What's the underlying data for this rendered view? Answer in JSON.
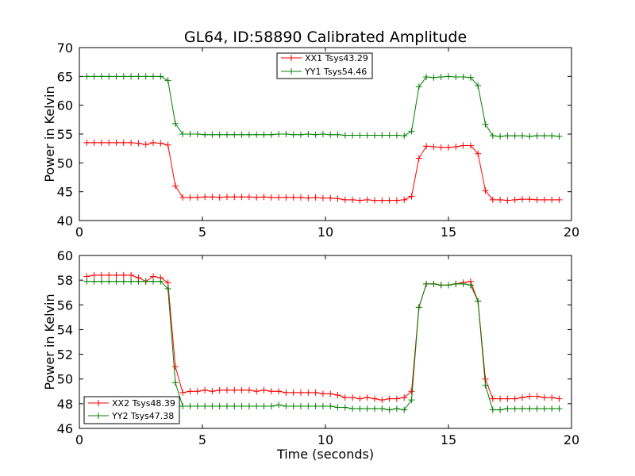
{
  "chart_data": [
    {
      "type": "line",
      "title": "GL64, ID:58890 Calibrated Amplitude",
      "xlabel": "",
      "ylabel": "Power in Kelvin",
      "xlim": [
        0,
        20
      ],
      "ylim": [
        40,
        70
      ],
      "xticks": [
        "0",
        "5",
        "10",
        "15",
        "20"
      ],
      "yticks": [
        "40",
        "45",
        "50",
        "55",
        "60",
        "65",
        "70"
      ],
      "legend_position": "top-center",
      "x": [
        0.3,
        0.6,
        0.9,
        1.2,
        1.5,
        1.8,
        2.1,
        2.4,
        2.7,
        3.0,
        3.3,
        3.6,
        3.9,
        4.2,
        4.5,
        4.8,
        5.1,
        5.4,
        5.7,
        6.0,
        6.3,
        6.6,
        6.9,
        7.2,
        7.5,
        7.8,
        8.1,
        8.4,
        8.7,
        9.0,
        9.3,
        9.6,
        9.9,
        10.2,
        10.5,
        10.8,
        11.1,
        11.4,
        11.7,
        12.0,
        12.3,
        12.6,
        12.9,
        13.2,
        13.5,
        13.8,
        14.1,
        14.4,
        14.7,
        15.0,
        15.3,
        15.6,
        15.9,
        16.2,
        16.5,
        16.8,
        17.1,
        17.4,
        17.7,
        18.0,
        18.3,
        18.6,
        18.9,
        19.2,
        19.5
      ],
      "series": [
        {
          "name": "XX1 Tsys43.29",
          "color": "#ff0000",
          "values": [
            53.5,
            53.5,
            53.5,
            53.5,
            53.5,
            53.5,
            53.5,
            53.4,
            53.2,
            53.5,
            53.4,
            53.1,
            46.0,
            44.0,
            44.0,
            44.0,
            44.1,
            44.1,
            44.0,
            44.1,
            44.1,
            44.1,
            44.1,
            44.0,
            44.1,
            44.0,
            44.0,
            44.0,
            44.0,
            44.0,
            43.9,
            44.0,
            43.9,
            43.9,
            43.8,
            43.6,
            43.6,
            43.5,
            43.6,
            43.5,
            43.5,
            43.5,
            43.5,
            43.6,
            44.2,
            50.8,
            52.9,
            52.8,
            52.7,
            52.7,
            52.8,
            53.0,
            53.0,
            51.6,
            45.2,
            43.6,
            43.6,
            43.5,
            43.6,
            43.7,
            43.7,
            43.6,
            43.6,
            43.6,
            43.6
          ]
        },
        {
          "name": "YY1 Tsys54.46",
          "color": "#008000",
          "values": [
            65.0,
            65.0,
            65.0,
            65.0,
            65.0,
            65.0,
            65.0,
            65.0,
            65.0,
            65.0,
            65.0,
            64.3,
            56.8,
            55.0,
            55.0,
            55.0,
            54.9,
            54.9,
            54.9,
            54.9,
            54.9,
            54.9,
            54.9,
            54.9,
            54.9,
            54.9,
            55.0,
            55.0,
            54.9,
            54.9,
            55.0,
            54.9,
            55.0,
            54.9,
            54.9,
            54.8,
            54.8,
            54.8,
            54.8,
            54.8,
            54.8,
            54.8,
            54.8,
            54.7,
            55.5,
            63.2,
            64.9,
            64.8,
            64.9,
            65.0,
            64.9,
            64.9,
            64.8,
            63.4,
            56.7,
            54.7,
            54.6,
            54.7,
            54.7,
            54.7,
            54.6,
            54.7,
            54.7,
            54.7,
            54.6
          ]
        }
      ]
    },
    {
      "type": "line",
      "title": "",
      "xlabel": "Time (seconds)",
      "ylabel": "Power in Kelvin",
      "xlim": [
        0,
        20
      ],
      "ylim": [
        46,
        60
      ],
      "xticks": [
        "0",
        "5",
        "10",
        "15",
        "20"
      ],
      "yticks": [
        "46",
        "48",
        "50",
        "52",
        "54",
        "56",
        "58",
        "60"
      ],
      "legend_position": "lower-left",
      "x": [
        0.3,
        0.6,
        0.9,
        1.2,
        1.5,
        1.8,
        2.1,
        2.4,
        2.7,
        3.0,
        3.3,
        3.6,
        3.9,
        4.2,
        4.5,
        4.8,
        5.1,
        5.4,
        5.7,
        6.0,
        6.3,
        6.6,
        6.9,
        7.2,
        7.5,
        7.8,
        8.1,
        8.4,
        8.7,
        9.0,
        9.3,
        9.6,
        9.9,
        10.2,
        10.5,
        10.8,
        11.1,
        11.4,
        11.7,
        12.0,
        12.3,
        12.6,
        12.9,
        13.2,
        13.5,
        13.8,
        14.1,
        14.4,
        14.7,
        15.0,
        15.3,
        15.6,
        15.9,
        16.2,
        16.5,
        16.8,
        17.1,
        17.4,
        17.7,
        18.0,
        18.3,
        18.6,
        18.9,
        19.2,
        19.5
      ],
      "series": [
        {
          "name": "XX2 Tsys48.39",
          "color": "#ff0000",
          "values": [
            58.3,
            58.4,
            58.4,
            58.4,
            58.4,
            58.4,
            58.4,
            58.2,
            57.9,
            58.3,
            58.2,
            57.8,
            51.0,
            48.9,
            49.0,
            49.0,
            49.1,
            49.0,
            49.1,
            49.1,
            49.1,
            49.1,
            49.1,
            49.0,
            49.1,
            49.0,
            49.0,
            48.9,
            48.9,
            48.9,
            48.9,
            48.9,
            48.8,
            48.8,
            48.7,
            48.5,
            48.5,
            48.4,
            48.5,
            48.4,
            48.3,
            48.4,
            48.4,
            48.5,
            49.0,
            55.8,
            57.7,
            57.7,
            57.6,
            57.6,
            57.7,
            57.8,
            57.9,
            56.3,
            50.0,
            48.4,
            48.4,
            48.4,
            48.4,
            48.5,
            48.6,
            48.6,
            48.5,
            48.5,
            48.4
          ]
        },
        {
          "name": "YY2 Tsys47.38",
          "color": "#008000",
          "values": [
            57.9,
            57.9,
            57.9,
            57.9,
            57.9,
            57.9,
            57.9,
            57.9,
            57.9,
            57.9,
            57.9,
            57.3,
            49.7,
            47.8,
            47.8,
            47.8,
            47.8,
            47.8,
            47.8,
            47.8,
            47.8,
            47.8,
            47.8,
            47.8,
            47.8,
            47.8,
            47.9,
            47.8,
            47.8,
            47.8,
            47.8,
            47.8,
            47.8,
            47.8,
            47.7,
            47.7,
            47.6,
            47.6,
            47.6,
            47.6,
            47.6,
            47.5,
            47.6,
            47.5,
            48.3,
            55.8,
            57.7,
            57.7,
            57.6,
            57.6,
            57.7,
            57.7,
            57.6,
            56.3,
            49.5,
            47.5,
            47.5,
            47.6,
            47.6,
            47.6,
            47.6,
            47.6,
            47.6,
            47.6,
            47.6
          ]
        }
      ]
    }
  ]
}
